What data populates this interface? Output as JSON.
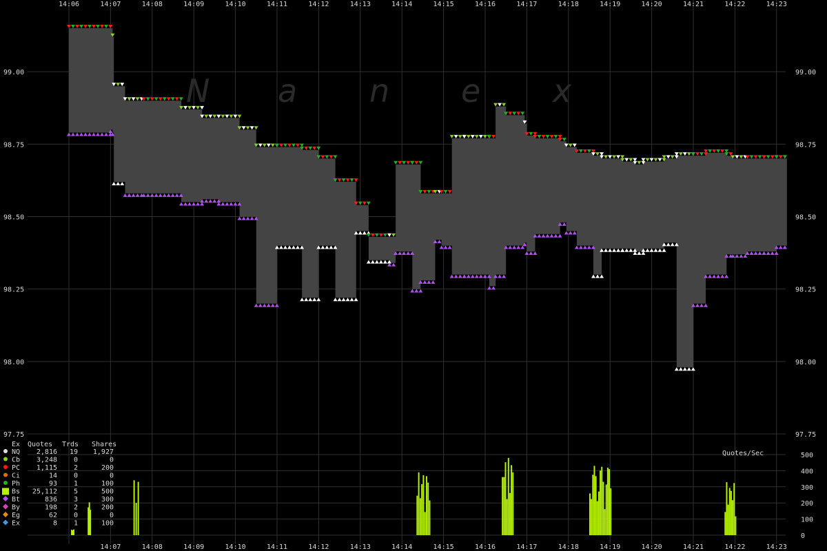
{
  "chart_data": {
    "type": "line",
    "watermark": "Nanex",
    "ylim": [
      97.75,
      99.2
    ],
    "y_ticks": [
      "99.00",
      "98.75",
      "98.50",
      "98.25",
      "98.00",
      "97.75"
    ],
    "x_ticks": [
      "14:06",
      "14:07",
      "14:08",
      "14:09",
      "14:10",
      "14:11",
      "14:12",
      "14:13",
      "14:14",
      "14:15",
      "14:16",
      "14:17",
      "14:18",
      "14:19",
      "14:20",
      "14:21",
      "14:22",
      "14:23"
    ],
    "x_ticks_bottom": [
      "14:07",
      "14:08",
      "14:09",
      "14:10",
      "14:11",
      "14:12",
      "14:13",
      "14:14",
      "14:15",
      "14:16",
      "14:17",
      "14:18",
      "14:19",
      "14:20",
      "14:21",
      "14:22",
      "14:23"
    ],
    "nbbo_spread": {
      "x_minutes": [
        0.0,
        1.0,
        1.05,
        1.08,
        1.35,
        1.45,
        1.8,
        2.7,
        3.2,
        3.6,
        4.1,
        4.5,
        5.0,
        5.6,
        6.0,
        6.4,
        6.9,
        7.2,
        7.7,
        7.85,
        8.25,
        8.45,
        8.8,
        8.95,
        9.2,
        9.5,
        10.1,
        10.25,
        10.5,
        10.95,
        11.0,
        11.2,
        11.8,
        11.95,
        12.2,
        12.6,
        12.8,
        13.3,
        13.6,
        13.8,
        14.3,
        14.6,
        15.0,
        15.3,
        15.8,
        15.95,
        16.3,
        16.7,
        17.0,
        17.2
      ],
      "bid": [
        98.79,
        98.8,
        98.79,
        98.62,
        98.58,
        98.58,
        98.58,
        98.55,
        98.56,
        98.55,
        98.5,
        98.2,
        98.4,
        98.22,
        98.4,
        98.22,
        98.45,
        98.35,
        98.34,
        98.38,
        98.25,
        98.28,
        98.42,
        98.4,
        98.3,
        98.3,
        98.26,
        98.3,
        98.4,
        98.41,
        98.38,
        98.44,
        98.48,
        98.45,
        98.4,
        98.3,
        98.39,
        98.39,
        98.38,
        98.39,
        98.41,
        97.98,
        98.2,
        98.3,
        98.37,
        98.37,
        98.38,
        98.38,
        98.4,
        98.4
      ],
      "ask": [
        99.15,
        99.15,
        99.12,
        98.95,
        98.9,
        98.9,
        98.9,
        98.87,
        98.84,
        98.84,
        98.8,
        98.74,
        98.74,
        98.73,
        98.7,
        98.62,
        98.54,
        98.43,
        98.43,
        98.68,
        98.68,
        98.58,
        98.58,
        98.58,
        98.77,
        98.77,
        98.77,
        98.88,
        98.85,
        98.82,
        98.78,
        98.77,
        98.76,
        98.74,
        98.72,
        98.71,
        98.7,
        98.69,
        98.68,
        98.69,
        98.7,
        98.71,
        98.71,
        98.72,
        98.71,
        98.7,
        98.7,
        98.7,
        98.7,
        98.7
      ]
    },
    "exchange_legend": {
      "headers": [
        "Ex",
        "Quotes",
        "Trds",
        "Shares"
      ],
      "rows": [
        {
          "ex": "NQ",
          "quotes": "2,816",
          "trds": "19",
          "shares": "1,927",
          "color": "#e0e0e0",
          "marker": "circle"
        },
        {
          "ex": "Cb",
          "quotes": "3,248",
          "trds": "0",
          "shares": "0",
          "color": "#8cd02a",
          "marker": "circle"
        },
        {
          "ex": "PC",
          "quotes": "1,115",
          "trds": "2",
          "shares": "200",
          "color": "#ff1a1a",
          "marker": "circle"
        },
        {
          "ex": "Ci",
          "quotes": "14",
          "trds": "0",
          "shares": "0",
          "color": "#e86a00",
          "marker": "circle"
        },
        {
          "ex": "Ph",
          "quotes": "93",
          "trds": "1",
          "shares": "100",
          "color": "#22b022",
          "marker": "circle"
        },
        {
          "ex": "Bs",
          "quotes": "25,112",
          "trds": "5",
          "shares": "500",
          "color": "#b4f000",
          "marker": "square"
        },
        {
          "ex": "Bt",
          "quotes": "836",
          "trds": "3",
          "shares": "300",
          "color": "#b050f0",
          "marker": "diamond"
        },
        {
          "ex": "By",
          "quotes": "198",
          "trds": "2",
          "shares": "200",
          "color": "#e040c0",
          "marker": "diamond"
        },
        {
          "ex": "Eg",
          "quotes": "62",
          "trds": "0",
          "shares": "0",
          "color": "#e08a20",
          "marker": "diamond"
        },
        {
          "ex": "Ex",
          "quotes": "8",
          "trds": "1",
          "shares": "100",
          "color": "#3a9ae0",
          "marker": "diamond"
        }
      ]
    },
    "quote_rate": {
      "ylabel": "Quotes/Sec",
      "ylim": [
        0,
        500
      ],
      "y_ticks": [
        "500",
        "400",
        "300",
        "200",
        "100",
        "0"
      ],
      "bursts": [
        {
          "x_minutes": 0.05,
          "width": 0.05,
          "peak": 40
        },
        {
          "x_minutes": 0.45,
          "width": 0.05,
          "peak": 230
        },
        {
          "x_minutes": 1.55,
          "width": 0.1,
          "peak": 350
        },
        {
          "x_minutes": 8.35,
          "width": 0.3,
          "peak": 390
        },
        {
          "x_minutes": 10.4,
          "width": 0.25,
          "peak": 480
        },
        {
          "x_minutes": 12.5,
          "width": 0.5,
          "peak": 430
        },
        {
          "x_minutes": 15.75,
          "width": 0.25,
          "peak": 330
        }
      ]
    },
    "colors": {
      "spread_fill": "#444444",
      "gridline": "#303030",
      "ask_marker": "#ff1a1a",
      "bid_marker": "#b050f0",
      "bs_color": "#b4f000"
    }
  }
}
